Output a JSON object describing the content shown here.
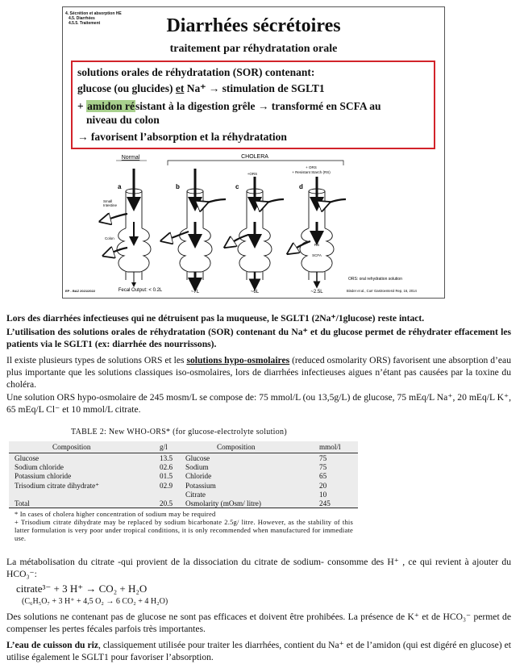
{
  "slide": {
    "breadcrumb": [
      "4. Sécrétion et absorption HE",
      "4.5. Diarrhées",
      "4.5.5. Traitement"
    ],
    "title": "Diarrhées sécrétoires",
    "subtitle": "traitement par réhydratation orale",
    "box": {
      "l1": "solutions orales de réhydratation (SOR) contenant:",
      "l2_a": "glucose (ou glucides) ",
      "l2_et": "et",
      "l2_b": " Na⁺ → stimulation de SGLT1",
      "l3_a": "+ ",
      "l3_hl": "amidon ré",
      "l3_b": "sistant  à  la  digestion  grêle  →  transformé  en  SCFA  au",
      "l4": "niveau du colon",
      "l5": "→ favorisent l’absorption et la réhydratation"
    },
    "figure": {
      "normal": "Normal",
      "cholera": "CHOLERA",
      "panels": [
        "a",
        "b",
        "c",
        "d"
      ],
      "ors_c": "+ORS",
      "ors_d1": "+ ORS",
      "ors_d2": "+ Resistant Starch (RS)",
      "small_intestine": "Small\nIntestine",
      "colon": "Colon",
      "fecal_output": "Fecal Output: < 0.2L",
      "outputs": [
        "~7L",
        "~6L",
        "~2.5L"
      ],
      "rs": "RS",
      "scfa": "SCFA",
      "legend": "ORS: oral rehydration solution",
      "citation": "Binder et al., Curr Gastroenterol Rep, 16, 2014"
    },
    "footer": "EP - BAZ 2021/2022"
  },
  "para1": "Lors des diarrhées infectieuses qui ne détruisent pas la muqueuse, le SGLT1 (2Na⁺/1glucose) reste intact.",
  "para2": "L’utilisation des solutions orales de réhydratation (SOR) contenant du Na⁺ et du glucose permet de réhydrater effacement les patients via le SGLT1 (ex: diarrhée des nourrissons).",
  "para3": {
    "a": "Il existe plusieurs types de solutions ORS et les ",
    "b": "solutions hypo-osmolaires",
    "c": " (reduced osmolarity ORS) favorisent une absorption d’eau plus importante que les solutions classiques iso-osmolaires, lors de diarrhées infectieuses aigues n’étant pas causées par la toxine du choléra."
  },
  "para4": "Une solution ORS hypo-osmolaire de 245 mosm/L se compose de: 75 mmol/L (ou 13,5g/L) de glucose, 75 mEq/L Na⁺, 20 mEq/L K⁺, 65 mEq/L Cl⁻ et 10 mmol/L citrate.",
  "table": {
    "title": "TABLE 2: New WHO-ORS* (for glucose-electrolyte solution)",
    "headers": [
      "Composition",
      "g/l",
      "Composition",
      "mmol/l"
    ],
    "left_names": "Glucose\nSodium chloride\nPotassium chloride\nTrisodium citrate dihydrate⁺\n\nTotal",
    "left_values": "13.5\n02.6\n01.5\n02.9\n\n20.5",
    "right_names": "Glucose\nSodium\nChloride\nPotassium\nCitrate\nOsmolarity (mOsm/ litre)",
    "right_values": "75\n75\n65\n20\n10\n245",
    "note1": "* In cases of cholera higher concentration of sodium may be required",
    "note2": "+ Trisodium citrate dihydrate may be replaced by sodium bicarbonate 2.5g/ litre. However, as the stability of this latter formulation is very poor under tropical conditions, it is only recommended when manufactured for immediate use."
  },
  "para5": "La métabolisation du citrate -qui provient de la dissociation du citrate de sodium- consomme des  H⁺ , ce qui revient à ajouter du HCO₃⁻:",
  "eq1": "citrate³⁻ + 3 H⁺ → CO₂ + H₂O",
  "eq2": "(C₆H₅O₇ + 3 H⁺ + 4,5 O₂ → 6 CO₂ + 4 H₂O)",
  "para6": "Des solutions ne contenant pas de glucose ne sont pas efficaces et doivent être prohibées. La présence de K⁺ et de HCO₃⁻ permet de compenser les pertes fécales parfois très importantes.",
  "para7": {
    "a": "L’eau de cuisson du riz",
    "b": ", classiquement utilisée pour traiter les diarrhées, contient du Na⁺ et de l’amidon (qui est digéré en glucose) et utilise également le SGLT1 pour favoriser l’absorption."
  }
}
